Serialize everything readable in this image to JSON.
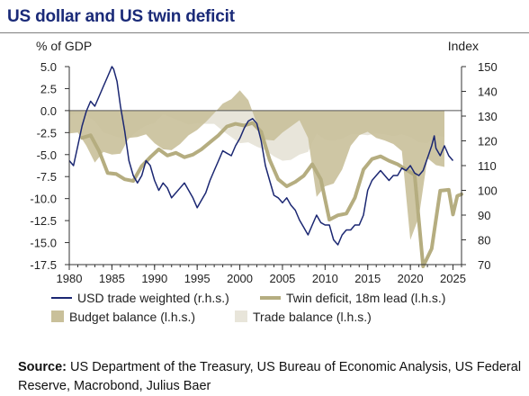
{
  "title": "US dollar and US twin deficit",
  "source": {
    "label": "Source:",
    "text": " US Department of the Treasury, US Bureau of Economic Analysis, US Federal Reserve, Macrobond, Julius Baer"
  },
  "chart_data": {
    "type": "line",
    "left_axis": {
      "label": "% of GDP",
      "range": [
        -17.5,
        5.0
      ],
      "ticks": [
        "5.0",
        "2.5",
        "0.0",
        "-2.5",
        "-5.0",
        "-7.5",
        "-10.0",
        "-12.5",
        "-15.0",
        "-17.5"
      ]
    },
    "right_axis": {
      "label": "Index",
      "range": [
        70,
        150
      ],
      "ticks": [
        "150",
        "140",
        "130",
        "120",
        "110",
        "100",
        "90",
        "80",
        "70"
      ]
    },
    "x_axis": {
      "range": [
        1980,
        2026
      ],
      "ticks": [
        "1980",
        "1985",
        "1990",
        "1995",
        "2000",
        "2005",
        "2010",
        "2015",
        "2020",
        "2025"
      ]
    },
    "legend_position": "bottom",
    "legend": [
      {
        "label": "USD trade weighted (r.h.s.)",
        "kind": "line",
        "color": "#1b2772"
      },
      {
        "label": "Twin deficit, 18m lead (l.h.s.)",
        "kind": "line",
        "color": "#b5ad80"
      },
      {
        "label": "Budget balance (l.h.s.)",
        "kind": "area",
        "color": "#c9c09a"
      },
      {
        "label": "Trade balance (l.h.s.)",
        "kind": "area",
        "color": "#e8e5da"
      }
    ],
    "series": [
      {
        "name": "Trade balance (l.h.s.)",
        "axis": "left",
        "x": [
          1980,
          1981,
          1982,
          1983,
          1984,
          1985,
          1986,
          1987,
          1988,
          1989,
          1990,
          1991,
          1992,
          1993,
          1994,
          1995,
          1996,
          1997,
          1998,
          1999,
          2000,
          2001,
          2002,
          2003,
          2004,
          2005,
          2006,
          2007,
          2008,
          2009,
          2010,
          2011,
          2012,
          2013,
          2014,
          2015,
          2016,
          2017,
          2018,
          2019,
          2020,
          2021,
          2022,
          2023,
          2024
        ],
        "y": [
          -0.5,
          -0.3,
          -0.6,
          -1.2,
          -2.5,
          -2.8,
          -3.1,
          -3.2,
          -2.3,
          -1.7,
          -1.4,
          -0.4,
          -0.8,
          -1.2,
          -1.6,
          -1.4,
          -1.5,
          -1.5,
          -2.3,
          -3.0,
          -3.7,
          -3.6,
          -4.1,
          -4.5,
          -5.2,
          -5.7,
          -5.6,
          -5.0,
          -4.7,
          -2.6,
          -3.3,
          -3.4,
          -3.2,
          -2.7,
          -2.7,
          -2.8,
          -2.6,
          -2.7,
          -2.9,
          -2.7,
          -3.0,
          -3.6,
          -3.7,
          -2.8,
          -3.0
        ]
      },
      {
        "name": "Budget balance (l.h.s.)",
        "axis": "left",
        "x": [
          1980,
          1981,
          1982,
          1983,
          1984,
          1985,
          1986,
          1987,
          1988,
          1989,
          1990,
          1991,
          1992,
          1993,
          1994,
          1995,
          1996,
          1997,
          1998,
          1999,
          2000,
          2001,
          2002,
          2003,
          2004,
          2005,
          2006,
          2007,
          2008,
          2009,
          2010,
          2011,
          2012,
          2013,
          2014,
          2015,
          2016,
          2017,
          2018,
          2019,
          2020,
          2021,
          2022,
          2023,
          2024
        ],
        "y": [
          -2.6,
          -2.5,
          -4.0,
          -5.9,
          -4.7,
          -5.0,
          -4.9,
          -3.1,
          -3.0,
          -2.7,
          -3.7,
          -4.4,
          -4.5,
          -3.8,
          -2.8,
          -2.2,
          -1.3,
          -0.3,
          0.8,
          1.3,
          2.3,
          1.2,
          -1.5,
          -3.3,
          -3.4,
          -2.5,
          -1.8,
          -1.1,
          -3.1,
          -9.8,
          -8.6,
          -8.3,
          -6.7,
          -4.0,
          -2.8,
          -2.4,
          -3.1,
          -3.4,
          -3.8,
          -4.6,
          -14.7,
          -12.1,
          -5.4,
          -6.2,
          -6.4
        ]
      },
      {
        "name": "Twin deficit, 18m lead (l.h.s.)",
        "axis": "left",
        "x": [
          1981.5,
          1982.5,
          1983.5,
          1984.5,
          1985.5,
          1986.5,
          1987.5,
          1988.5,
          1989.5,
          1990.5,
          1991.5,
          1992.5,
          1993.5,
          1994.5,
          1995.5,
          1996.5,
          1997.5,
          1998.5,
          1999.5,
          2000.5,
          2001.5,
          2002.5,
          2003.5,
          2004.5,
          2005.5,
          2006.5,
          2007.5,
          2008.5,
          2009.5,
          2010.5,
          2011.5,
          2012.5,
          2013.5,
          2014.5,
          2015.5,
          2016.5,
          2017.5,
          2018.5,
          2019.5,
          2020.5,
          2021.5,
          2022.5,
          2023.5,
          2024.5,
          2025.0,
          2025.5,
          2026.0
        ],
        "y": [
          -3.1,
          -2.8,
          -4.6,
          -7.1,
          -7.2,
          -7.8,
          -8.0,
          -6.3,
          -5.3,
          -4.4,
          -5.1,
          -4.8,
          -5.3,
          -5.0,
          -4.4,
          -3.6,
          -2.8,
          -1.8,
          -1.5,
          -1.7,
          -1.4,
          -2.4,
          -5.6,
          -7.8,
          -8.6,
          -8.1,
          -7.4,
          -6.1,
          -7.8,
          -12.4,
          -11.9,
          -11.7,
          -9.9,
          -6.7,
          -5.5,
          -5.2,
          -5.7,
          -6.1,
          -6.7,
          -7.3,
          -17.7,
          -15.7,
          -9.1,
          -9.0,
          -11.8,
          -9.7,
          -9.5
        ]
      },
      {
        "name": "USD trade weighted (r.h.s.)",
        "axis": "right",
        "x": [
          1980.0,
          1980.5,
          1981.0,
          1981.5,
          1982.0,
          1982.5,
          1983.0,
          1983.5,
          1984.0,
          1984.5,
          1985.0,
          1985.2,
          1985.6,
          1986.0,
          1986.5,
          1987.0,
          1987.5,
          1988.0,
          1988.5,
          1989.0,
          1989.5,
          1990.0,
          1990.5,
          1991.0,
          1991.5,
          1992.0,
          1992.5,
          1993.0,
          1993.5,
          1994.0,
          1994.5,
          1995.0,
          1995.5,
          1996.0,
          1996.5,
          1997.0,
          1997.5,
          1998.0,
          1998.5,
          1999.0,
          1999.5,
          2000.0,
          2000.5,
          2001.0,
          2001.5,
          2002.0,
          2002.5,
          2003.0,
          2003.5,
          2004.0,
          2004.5,
          2005.0,
          2005.5,
          2006.0,
          2006.5,
          2007.0,
          2007.5,
          2008.0,
          2008.5,
          2009.0,
          2009.5,
          2010.0,
          2010.5,
          2011.0,
          2011.5,
          2012.0,
          2012.5,
          2013.0,
          2013.5,
          2014.0,
          2014.5,
          2015.0,
          2015.5,
          2016.0,
          2016.5,
          2017.0,
          2017.5,
          2018.0,
          2018.5,
          2019.0,
          2019.5,
          2020.0,
          2020.5,
          2021.0,
          2021.5,
          2022.0,
          2022.5,
          2022.8,
          2023.0,
          2023.5,
          2024.0,
          2024.5,
          2025.0
        ],
        "y": [
          112,
          110,
          118,
          126,
          132,
          136,
          134,
          138,
          142,
          146,
          150,
          149,
          144,
          134,
          124,
          112,
          106,
          103,
          106,
          112,
          110,
          104,
          100,
          103,
          101,
          97,
          99,
          101,
          103,
          100,
          97,
          93,
          96,
          99,
          104,
          108,
          112,
          116,
          115,
          114,
          118,
          121,
          125,
          128,
          129,
          127,
          120,
          110,
          104,
          98,
          97,
          95,
          97,
          94,
          92,
          88,
          85,
          82,
          86,
          90,
          87,
          86,
          86,
          80,
          78,
          82,
          84,
          84,
          86,
          86,
          90,
          100,
          104,
          106,
          108,
          106,
          104,
          106,
          106,
          109,
          108,
          110,
          107,
          106,
          108,
          113,
          118,
          122,
          117,
          114,
          118,
          114,
          112
        ]
      }
    ]
  }
}
